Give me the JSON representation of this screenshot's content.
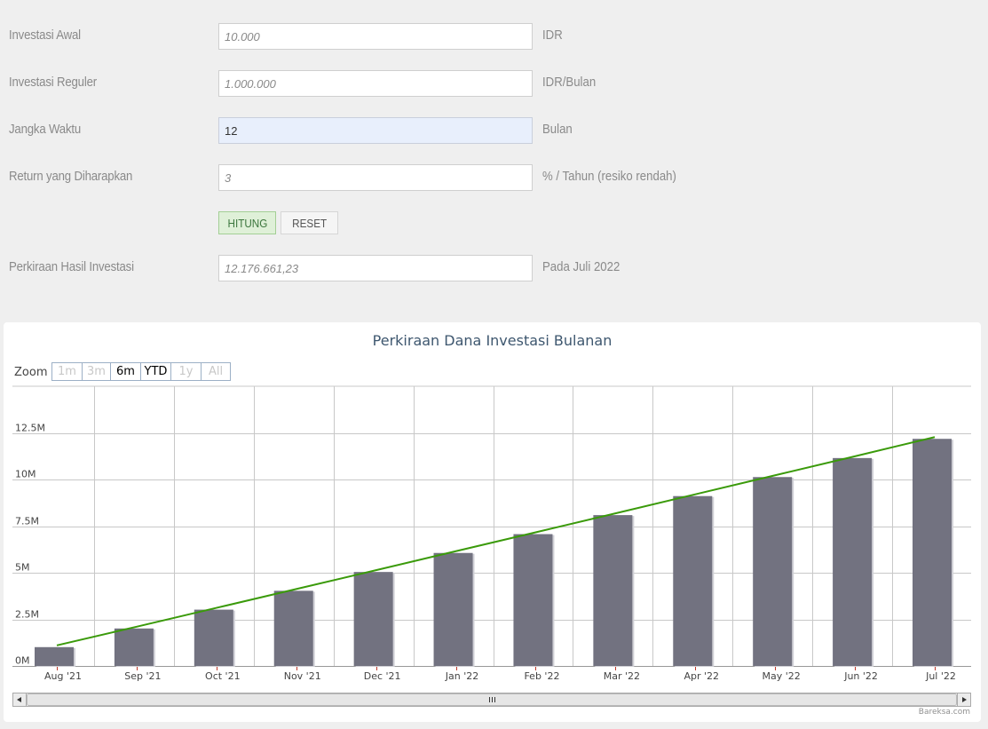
{
  "form": {
    "rows": [
      {
        "label": "Investasi Awal",
        "value": "10.000",
        "unit": "IDR"
      },
      {
        "label": "Investasi Reguler",
        "value": "1.000.000",
        "unit": "IDR/Bulan"
      },
      {
        "label": "Jangka Waktu",
        "value": "12",
        "unit": "Bulan"
      },
      {
        "label": "Return yang Diharapkan",
        "value": "3",
        "unit": "% / Tahun (resiko rendah)"
      }
    ],
    "hitung_label": "HITUNG",
    "reset_label": "RESET",
    "result": {
      "label": "Perkiraan Hasil Investasi",
      "value": "12.176.661,23",
      "unit": "Pada Juli 2022"
    }
  },
  "chart": {
    "zoom_label": "Zoom",
    "zoom_buttons": [
      {
        "label": "1m",
        "enabled": false
      },
      {
        "label": "3m",
        "enabled": false
      },
      {
        "label": "6m",
        "enabled": true
      },
      {
        "label": "YTD",
        "enabled": true
      },
      {
        "label": "1y",
        "enabled": false
      },
      {
        "label": "All",
        "enabled": false
      }
    ],
    "credit": "Bareksa.com",
    "colors": {
      "bar": "#727280",
      "line": "#3a9a0a",
      "grid": "#c8c8c8",
      "axis_tick": "#c0392b"
    }
  },
  "chart_data": {
    "type": "bar",
    "title": "Perkiraan Dana Investasi Bulanan",
    "categories": [
      "Aug '21",
      "Sep '21",
      "Oct '21",
      "Nov '21",
      "Dec '21",
      "Jan '22",
      "Feb '22",
      "Mar '22",
      "Apr '22",
      "May '22",
      "Jun '22",
      "Jul '22"
    ],
    "series": [
      {
        "type": "bar",
        "values": [
          1.01,
          2.01,
          3.02,
          4.03,
          5.04,
          6.06,
          7.07,
          8.09,
          9.11,
          10.13,
          11.15,
          12.18
        ]
      },
      {
        "type": "line",
        "values": [
          1.01,
          2.01,
          3.02,
          4.03,
          5.04,
          6.06,
          7.07,
          8.09,
          9.11,
          10.13,
          11.15,
          12.18
        ]
      }
    ],
    "y_ticks": [
      "0M",
      "2.5M",
      "5M",
      "7.5M",
      "10M",
      "12.5M"
    ],
    "y_unit": "M",
    "ylim": [
      0,
      15
    ],
    "grid": true
  }
}
